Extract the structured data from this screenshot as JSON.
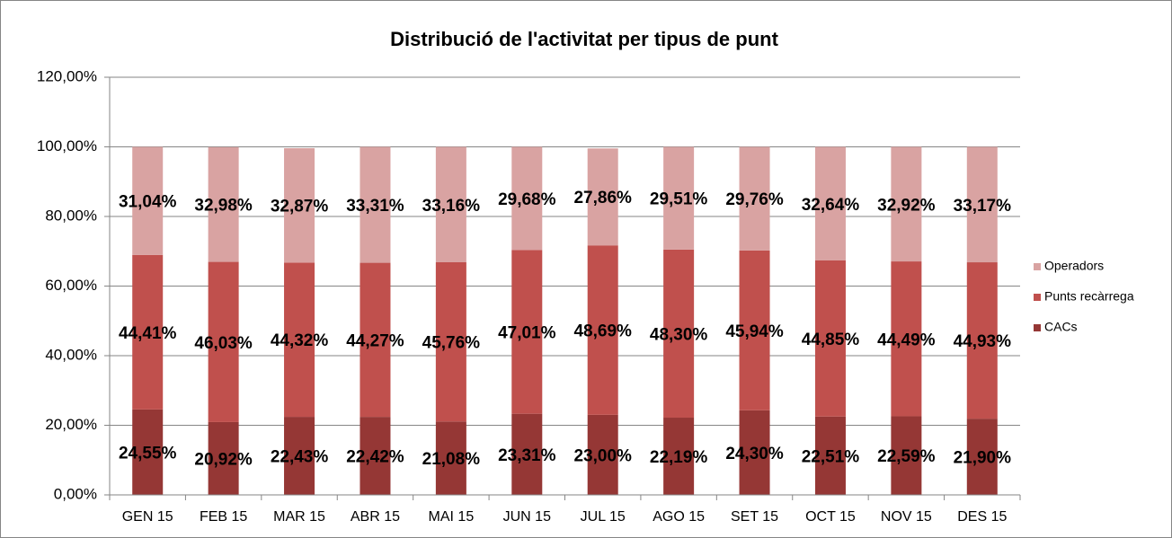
{
  "chart_data": {
    "type": "stacked_bar",
    "title": "Distribució de l'activitat per tipus de punt",
    "categories": [
      "GEN 15",
      "FEB 15",
      "MAR 15",
      "ABR 15",
      "MAI 15",
      "JUN 15",
      "JUL 15",
      "AGO 15",
      "SET 15",
      "OCT 15",
      "NOV 15",
      "DES 15"
    ],
    "series": [
      {
        "name": "CACs",
        "color": "#953735",
        "values": [
          24.55,
          20.92,
          22.43,
          22.42,
          21.08,
          23.31,
          23.0,
          22.19,
          24.3,
          22.51,
          22.59,
          21.9
        ],
        "value_labels": [
          "24,55%",
          "20,92%",
          "22,43%",
          "22,42%",
          "21,08%",
          "23,31%",
          "23,00%",
          "22,19%",
          "24,30%",
          "22,51%",
          "22,59%",
          "21,90%"
        ]
      },
      {
        "name": "Punts recàrrega",
        "color": "#c0504d",
        "values": [
          44.41,
          46.03,
          44.32,
          44.27,
          45.76,
          47.01,
          48.69,
          48.3,
          45.94,
          44.85,
          44.49,
          44.93
        ],
        "value_labels": [
          "44,41%",
          "46,03%",
          "44,32%",
          "44,27%",
          "45,76%",
          "47,01%",
          "48,69%",
          "48,30%",
          "45,94%",
          "44,85%",
          "44,49%",
          "44,93%"
        ]
      },
      {
        "name": "Operadors",
        "color": "#d9a3a2",
        "values": [
          31.04,
          32.98,
          32.87,
          33.31,
          33.16,
          29.68,
          27.86,
          29.51,
          29.76,
          32.64,
          32.92,
          33.17
        ],
        "value_labels": [
          "31,04%",
          "32,98%",
          "32,87%",
          "33,31%",
          "33,16%",
          "29,68%",
          "27,86%",
          "29,51%",
          "29,76%",
          "32,64%",
          "32,92%",
          "33,17%"
        ]
      }
    ],
    "ylim": [
      0,
      120
    ],
    "yticks": [
      {
        "value": 0,
        "label": "0,00%"
      },
      {
        "value": 20,
        "label": "20,00%"
      },
      {
        "value": 40,
        "label": "40,00%"
      },
      {
        "value": 60,
        "label": "60,00%"
      },
      {
        "value": 80,
        "label": "80,00%"
      },
      {
        "value": 100,
        "label": "100,00%"
      },
      {
        "value": 120,
        "label": "120,00%"
      }
    ],
    "grid": true,
    "legend": "right"
  }
}
